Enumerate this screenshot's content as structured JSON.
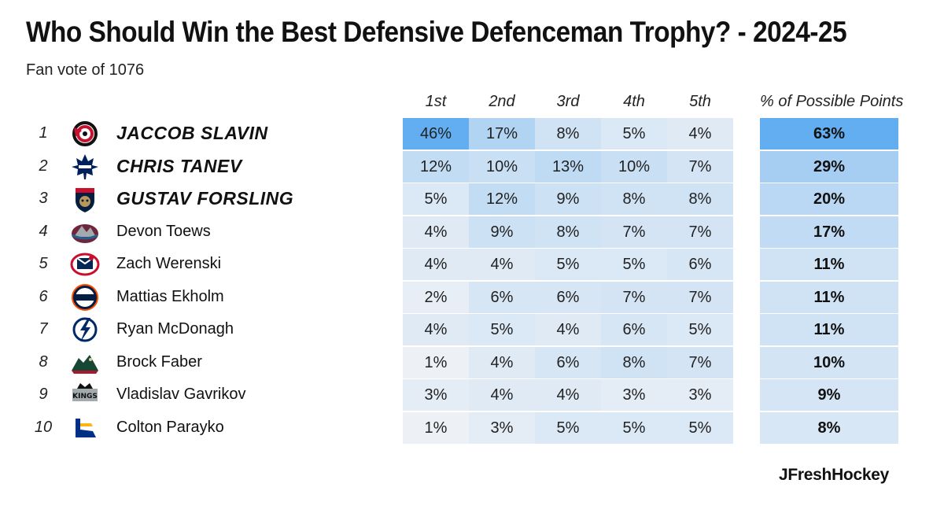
{
  "title": "Who Should Win the Best Defensive Defenceman Trophy? - 2024-25",
  "subtitle": "Fan vote of 1076",
  "brand": "JFreshHockey",
  "columns": [
    "1st",
    "2nd",
    "3rd",
    "4th",
    "5th"
  ],
  "points_header": "% of Possible Points",
  "colors": {
    "max_fill": "#62aef0",
    "min_fill": "#f4f4f6",
    "text": "#111111"
  },
  "chart_data": {
    "type": "table",
    "title": "Who Should Win the Best Defensive Defenceman Trophy? - 2024-25",
    "subtitle": "Fan vote of 1076",
    "columns": [
      "1st",
      "2nd",
      "3rd",
      "4th",
      "5th",
      "% of Possible Points"
    ],
    "rows": [
      {
        "rank": "1",
        "player": "JACCOB SLAVIN",
        "team_icon": "carolina-hurricanes-logo",
        "featured": true,
        "votes": [
          "46%",
          "17%",
          "8%",
          "5%",
          "4%"
        ],
        "vote_values": [
          46,
          17,
          8,
          5,
          4
        ],
        "points": "63%",
        "points_value": 63
      },
      {
        "rank": "2",
        "player": "CHRIS TANEV",
        "team_icon": "toronto-maple-leafs-logo",
        "featured": true,
        "votes": [
          "12%",
          "10%",
          "13%",
          "10%",
          "7%"
        ],
        "vote_values": [
          12,
          10,
          13,
          10,
          7
        ],
        "points": "29%",
        "points_value": 29
      },
      {
        "rank": "3",
        "player": "GUSTAV FORSLING",
        "team_icon": "florida-panthers-logo",
        "featured": true,
        "votes": [
          "5%",
          "12%",
          "9%",
          "8%",
          "8%"
        ],
        "vote_values": [
          5,
          12,
          9,
          8,
          8
        ],
        "points": "20%",
        "points_value": 20
      },
      {
        "rank": "4",
        "player": "Devon Toews",
        "team_icon": "colorado-avalanche-logo",
        "featured": false,
        "votes": [
          "4%",
          "9%",
          "8%",
          "7%",
          "7%"
        ],
        "vote_values": [
          4,
          9,
          8,
          7,
          7
        ],
        "points": "17%",
        "points_value": 17
      },
      {
        "rank": "5",
        "player": "Zach Werenski",
        "team_icon": "columbus-blue-jackets-logo",
        "featured": false,
        "votes": [
          "4%",
          "4%",
          "5%",
          "5%",
          "6%"
        ],
        "vote_values": [
          4,
          4,
          5,
          5,
          6
        ],
        "points": "11%",
        "points_value": 11
      },
      {
        "rank": "6",
        "player": "Mattias Ekholm",
        "team_icon": "edmonton-oilers-logo",
        "featured": false,
        "votes": [
          "2%",
          "6%",
          "6%",
          "7%",
          "7%"
        ],
        "vote_values": [
          2,
          6,
          6,
          7,
          7
        ],
        "points": "11%",
        "points_value": 11
      },
      {
        "rank": "7",
        "player": "Ryan McDonagh",
        "team_icon": "tampa-bay-lightning-logo",
        "featured": false,
        "votes": [
          "4%",
          "5%",
          "4%",
          "6%",
          "5%"
        ],
        "vote_values": [
          4,
          5,
          4,
          6,
          5
        ],
        "points": "11%",
        "points_value": 11
      },
      {
        "rank": "8",
        "player": "Brock Faber",
        "team_icon": "minnesota-wild-logo",
        "featured": false,
        "votes": [
          "1%",
          "4%",
          "6%",
          "8%",
          "7%"
        ],
        "vote_values": [
          1,
          4,
          6,
          8,
          7
        ],
        "points": "10%",
        "points_value": 10
      },
      {
        "rank": "9",
        "player": "Vladislav Gavrikov",
        "team_icon": "los-angeles-kings-logo",
        "featured": false,
        "votes": [
          "3%",
          "4%",
          "4%",
          "3%",
          "3%"
        ],
        "vote_values": [
          3,
          4,
          4,
          3,
          3
        ],
        "points": "9%",
        "points_value": 9
      },
      {
        "rank": "10",
        "player": "Colton Parayko",
        "team_icon": "st-louis-blues-logo",
        "featured": false,
        "votes": [
          "1%",
          "3%",
          "5%",
          "5%",
          "5%"
        ],
        "vote_values": [
          1,
          3,
          5,
          5,
          5
        ],
        "points": "8%",
        "points_value": 8
      }
    ]
  }
}
